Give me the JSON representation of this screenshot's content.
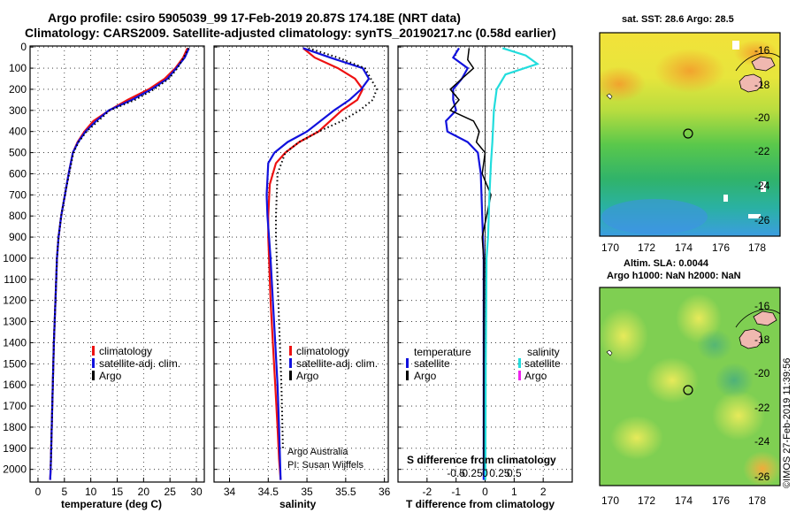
{
  "title_line1": "Argo profile: csiro 5905039_99 17-Feb-2019 20.87S 174.18E (NRT data)",
  "title_line2": "Climatology: CARS2009. Satellite-adjusted climatology: synTS_20190217.nc (0.58d earlier)",
  "depth_ticks": [
    "0",
    "100",
    "200",
    "300",
    "400",
    "500",
    "600",
    "700",
    "800",
    "900",
    "1000",
    "1100",
    "1200",
    "1300",
    "1400",
    "1500",
    "1600",
    "1700",
    "1800",
    "1900",
    "2000"
  ],
  "colors": {
    "climatology": "#ee1111",
    "satellite": "#1111dd",
    "argo": "#000000",
    "salinity_sat": "#22dddd",
    "salinity_argo": "#ee22ee"
  },
  "chart_data": [
    {
      "type": "line",
      "xlabel": "temperature (deg C)",
      "ylabel": "depth",
      "xlim": [
        -1.5,
        31.5
      ],
      "ylim": [
        2060,
        -5
      ],
      "xticks": [
        0,
        5,
        10,
        15,
        20,
        25,
        30
      ],
      "xtick_labels": [
        "0",
        "5",
        "10",
        "15",
        "20",
        "25",
        "30"
      ],
      "legend": [
        "climatology",
        "satellite-adj. clim.",
        "Argo"
      ],
      "series": [
        {
          "name": "climatology",
          "style": "red",
          "x": [
            28.3,
            27.5,
            26,
            24,
            21,
            17,
            13.5,
            10.5,
            8.8,
            7.5,
            6.6,
            5.8,
            5.1,
            4.4,
            3.9,
            3.6,
            3.3,
            3.0,
            2.8,
            2.6,
            2.4,
            2.3
          ],
          "y": [
            5,
            50,
            100,
            150,
            200,
            250,
            300,
            350,
            400,
            450,
            500,
            600,
            700,
            800,
            900,
            1000,
            1200,
            1400,
            1600,
            1800,
            2000,
            2050
          ]
        },
        {
          "name": "satellite-adj. clim.",
          "style": "blue",
          "x": [
            28.6,
            27.8,
            26.2,
            24.5,
            21.5,
            17.8,
            13.4,
            11,
            9,
            7.6,
            6.6,
            5.8,
            5.1,
            4.4,
            3.9,
            3.6,
            3.3,
            3.0,
            2.8,
            2.6,
            2.4,
            2.3
          ],
          "y": [
            5,
            50,
            100,
            150,
            200,
            250,
            300,
            350,
            400,
            450,
            500,
            600,
            700,
            800,
            900,
            1000,
            1200,
            1400,
            1600,
            1800,
            2000,
            2050
          ]
        },
        {
          "name": "Argo",
          "style": "black",
          "x": [
            28.5,
            27.6,
            26.4,
            24.8,
            22,
            18.4,
            13.6,
            11.4,
            9.2,
            7.7,
            6.7,
            5.9,
            5.1,
            4.4,
            3.9,
            3.6,
            3.3,
            3.0,
            2.8,
            2.6,
            2.4
          ],
          "y": [
            5,
            50,
            100,
            150,
            200,
            250,
            300,
            350,
            400,
            450,
            500,
            600,
            700,
            800,
            900,
            1000,
            1200,
            1400,
            1600,
            1800,
            2000
          ]
        }
      ]
    },
    {
      "type": "line",
      "xlabel": "salinity",
      "ylabel": "depth",
      "xlim": [
        33.8,
        36.05
      ],
      "ylim": [
        2060,
        -5
      ],
      "xticks": [
        34,
        34.5,
        35,
        35.5,
        36
      ],
      "xtick_labels": [
        "34",
        "34.5",
        "35",
        "35.5",
        "36"
      ],
      "legend": [
        "climatology",
        "satellite-adj. clim.",
        "Argo"
      ],
      "annotations": [
        "Argo Australia",
        "PI: Susan Wijffels"
      ],
      "series": [
        {
          "name": "climatology",
          "style": "red",
          "x": [
            34.95,
            35.1,
            35.4,
            35.62,
            35.72,
            35.65,
            35.45,
            35.15,
            34.9,
            34.72,
            34.6,
            34.52,
            34.5,
            34.5,
            34.51,
            34.53,
            34.56,
            34.59,
            34.62,
            34.64,
            34.66
          ],
          "y": [
            5,
            50,
            100,
            150,
            200,
            250,
            300,
            400,
            450,
            500,
            550,
            650,
            800,
            900,
            1000,
            1200,
            1400,
            1600,
            1800,
            1950,
            2050
          ]
        },
        {
          "name": "satellite-adj. clim.",
          "style": "blue",
          "x": [
            34.95,
            35.3,
            35.72,
            35.8,
            35.7,
            35.55,
            35.35,
            35.0,
            34.75,
            34.58,
            34.5,
            34.48,
            34.49,
            34.51,
            34.53,
            34.56,
            34.59,
            34.62,
            34.64,
            34.66
          ],
          "y": [
            5,
            50,
            100,
            150,
            200,
            250,
            300,
            400,
            450,
            500,
            550,
            700,
            800,
            900,
            1000,
            1200,
            1400,
            1600,
            1800,
            2050
          ]
        },
        {
          "name": "Argo",
          "style": "black",
          "x": [
            35.02,
            35.4,
            35.75,
            35.9,
            35.85,
            35.68,
            35.45,
            35.15,
            34.9,
            34.72,
            34.62,
            34.6,
            34.6,
            34.61,
            34.63,
            34.65,
            34.67,
            34.69
          ],
          "y": [
            5,
            50,
            100,
            200,
            250,
            300,
            350,
            400,
            450,
            500,
            600,
            800,
            900,
            1000,
            1200,
            1400,
            1600,
            1900
          ]
        }
      ]
    },
    {
      "type": "line",
      "xlabel": "T difference from climatology",
      "x2label": "S difference from climatology",
      "ylabel": "depth",
      "xlim": [
        -3,
        3
      ],
      "ylim": [
        2060,
        -5
      ],
      "xticks": [
        -2,
        -1,
        0,
        1,
        2
      ],
      "xtick_labels": [
        "-2",
        "-1",
        "0",
        "1",
        "2"
      ],
      "x2ticks": [
        -0.5,
        -0.25,
        0,
        0.25,
        0.5
      ],
      "x2tick_labels": [
        "-0.5",
        "-0.25",
        "0",
        "0.25",
        "0.5"
      ],
      "legend_left_title": "temperature",
      "legend_right_title": "salinity",
      "legend_left": [
        "satellite",
        "Argo"
      ],
      "legend_right": [
        "satellite",
        "Argo"
      ],
      "series": [
        {
          "name": "T satellite",
          "style": "blue",
          "x": [
            -0.9,
            -1.1,
            -0.6,
            -0.8,
            -1.1,
            -1.1,
            -1.0,
            -1.35,
            -1.3,
            -0.6,
            -0.25,
            -0.15,
            -0.1,
            -0.05,
            -0.05,
            -0.05,
            -0.05,
            -0.05
          ],
          "y": [
            5,
            50,
            100,
            150,
            200,
            250,
            300,
            350,
            400,
            450,
            500,
            600,
            800,
            1000,
            1200,
            1400,
            1600,
            2050
          ]
        },
        {
          "name": "T Argo",
          "style": "black",
          "x": [
            -0.55,
            -0.6,
            -0.4,
            -0.8,
            -1.2,
            -0.9,
            -1.2,
            -0.4,
            -0.2,
            -0.3,
            0.0,
            -0.1,
            0.2,
            -0.1,
            -0.05,
            -0.05,
            -0.05
          ],
          "y": [
            5,
            60,
            100,
            150,
            200,
            250,
            300,
            350,
            400,
            450,
            500,
            600,
            700,
            900,
            1000,
            1500,
            2000
          ]
        },
        {
          "name": "S satellite",
          "style": "cyan",
          "x": [
            0.6,
            1.4,
            1.8,
            0.7,
            0.4,
            0.3,
            0.25,
            0.2,
            0.15,
            0.1,
            0.05,
            0.02,
            0.01
          ],
          "y": [
            5,
            40,
            80,
            130,
            200,
            300,
            450,
            550,
            700,
            900,
            1000,
            1500,
            2050
          ]
        }
      ]
    }
  ],
  "maps": [
    {
      "title": "sat. SST: 28.6 Argo: 28.5",
      "lon_ticks": [
        "170",
        "172",
        "174",
        "176",
        "178"
      ],
      "lat_ticks": [
        "-16",
        "-18",
        "-20",
        "-22",
        "-24",
        "-26"
      ]
    },
    {
      "title_line1": "Altim. SLA: 0.0044",
      "title_line2": "Argo h1000: NaN h2000: NaN",
      "lon_ticks": [
        "170",
        "172",
        "174",
        "176",
        "178"
      ],
      "lat_ticks": [
        "-16",
        "-18",
        "-20",
        "-22",
        "-24",
        "-26"
      ]
    }
  ],
  "credit": "©IMOS 27-Feb-2019 11:39:56"
}
